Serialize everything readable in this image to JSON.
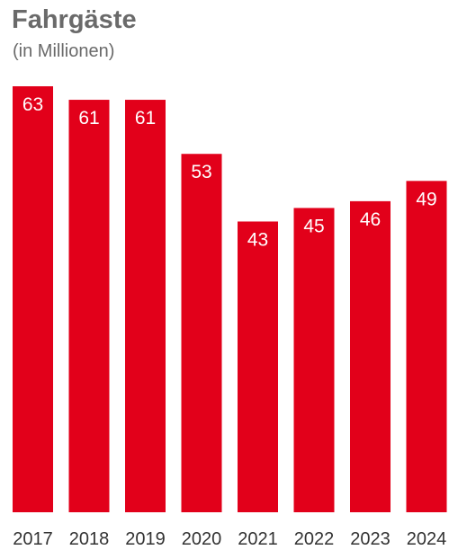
{
  "chart_data": {
    "type": "bar",
    "title": "Fahrgäste",
    "subtitle": "(in Millionen)",
    "categories": [
      "2017",
      "2018",
      "2019",
      "2020",
      "2021",
      "2022",
      "2023",
      "2024"
    ],
    "values": [
      63,
      61,
      61,
      53,
      43,
      45,
      46,
      49
    ],
    "data_labels": [
      "63",
      "61",
      "61",
      "53",
      "43",
      "45",
      "46",
      "49"
    ],
    "xlabel": "",
    "ylabel": "",
    "ylim": [
      0,
      63
    ],
    "grid": false,
    "legend": "none",
    "bar_color": "#e2001a",
    "label_color": "#ffffff"
  }
}
